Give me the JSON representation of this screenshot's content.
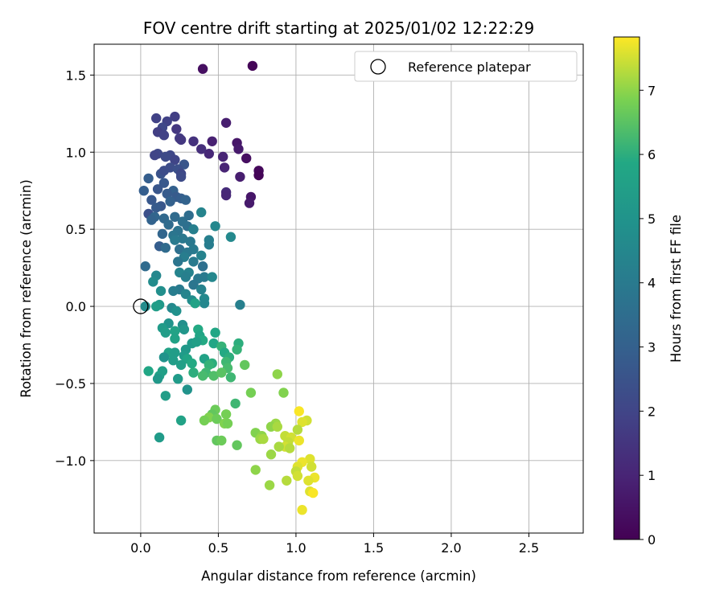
{
  "chart_data": {
    "type": "scatter",
    "title": "FOV centre drift starting at 2025/01/02 12:22:29",
    "xlabel": "Angular distance from reference (arcmin)",
    "ylabel": "Rotation from reference (arcmin)",
    "xlim": [
      -0.3,
      2.85
    ],
    "ylim": [
      -1.47,
      1.7
    ],
    "xticks": [
      {
        "value": 0.0,
        "label": "0.0"
      },
      {
        "value": 0.5,
        "label": "0.5"
      },
      {
        "value": 1.0,
        "label": "1.0"
      },
      {
        "value": 1.5,
        "label": "1.5"
      },
      {
        "value": 2.0,
        "label": "2.0"
      },
      {
        "value": 2.5,
        "label": "2.5"
      }
    ],
    "yticks": [
      {
        "value": -1.0,
        "label": "−1.0"
      },
      {
        "value": -0.5,
        "label": "−0.5"
      },
      {
        "value": 0.0,
        "label": "0.0"
      },
      {
        "value": 0.5,
        "label": "0.5"
      },
      {
        "value": 1.0,
        "label": "1.0"
      },
      {
        "value": 1.5,
        "label": "1.5"
      }
    ],
    "grid": true,
    "legend": {
      "position": "top-right",
      "entries": [
        {
          "label": "Reference platepar",
          "marker": "open-circle",
          "x": 0.0,
          "y": 0.0
        }
      ]
    },
    "colorbar": {
      "label": "Hours from first FF file",
      "colormap": "viridis",
      "range": [
        0,
        7.83
      ],
      "ticks": [
        {
          "value": 0,
          "label": "0"
        },
        {
          "value": 1,
          "label": "1"
        },
        {
          "value": 2,
          "label": "2"
        },
        {
          "value": 3,
          "label": "3"
        },
        {
          "value": 4,
          "label": "4"
        },
        {
          "value": 5,
          "label": "5"
        },
        {
          "value": 6,
          "label": "6"
        },
        {
          "value": 7,
          "label": "7"
        }
      ]
    },
    "points": [
      {
        "x": 0.4,
        "y": 1.54,
        "h": 0.4
      },
      {
        "x": 0.72,
        "y": 1.56,
        "h": 0.1
      },
      {
        "x": 0.55,
        "y": 1.19,
        "h": 0.8
      },
      {
        "x": 0.46,
        "y": 1.07,
        "h": 0.9
      },
      {
        "x": 0.62,
        "y": 1.06,
        "h": 0.6
      },
      {
        "x": 0.63,
        "y": 1.02,
        "h": 0.7
      },
      {
        "x": 0.68,
        "y": 0.96,
        "h": 0.4
      },
      {
        "x": 0.53,
        "y": 0.97,
        "h": 1.0
      },
      {
        "x": 0.44,
        "y": 0.99,
        "h": 1.1
      },
      {
        "x": 0.39,
        "y": 1.02,
        "h": 1.3
      },
      {
        "x": 0.34,
        "y": 1.07,
        "h": 1.4
      },
      {
        "x": 0.76,
        "y": 0.88,
        "h": 0.2
      },
      {
        "x": 0.76,
        "y": 0.85,
        "h": 0.1
      },
      {
        "x": 0.54,
        "y": 0.9,
        "h": 1.0
      },
      {
        "x": 0.64,
        "y": 0.84,
        "h": 0.8
      },
      {
        "x": 0.55,
        "y": 0.74,
        "h": 1.2
      },
      {
        "x": 0.55,
        "y": 0.72,
        "h": 1.1
      },
      {
        "x": 0.71,
        "y": 0.71,
        "h": 0.6
      },
      {
        "x": 0.7,
        "y": 0.67,
        "h": 0.7
      },
      {
        "x": 0.22,
        "y": 1.23,
        "h": 1.8
      },
      {
        "x": 0.1,
        "y": 1.22,
        "h": 1.9
      },
      {
        "x": 0.17,
        "y": 1.2,
        "h": 1.9
      },
      {
        "x": 0.14,
        "y": 1.16,
        "h": 2.1
      },
      {
        "x": 0.23,
        "y": 1.15,
        "h": 1.6
      },
      {
        "x": 0.11,
        "y": 1.13,
        "h": 1.8
      },
      {
        "x": 0.15,
        "y": 1.11,
        "h": 1.9
      },
      {
        "x": 0.25,
        "y": 1.09,
        "h": 1.7
      },
      {
        "x": 0.26,
        "y": 1.08,
        "h": 1.6
      },
      {
        "x": 0.11,
        "y": 0.99,
        "h": 2.1
      },
      {
        "x": 0.09,
        "y": 0.98,
        "h": 2.0
      },
      {
        "x": 0.19,
        "y": 0.98,
        "h": 2.1
      },
      {
        "x": 0.16,
        "y": 0.97,
        "h": 2.2
      },
      {
        "x": 0.22,
        "y": 0.95,
        "h": 2.0
      },
      {
        "x": 0.28,
        "y": 0.92,
        "h": 2.6
      },
      {
        "x": 0.19,
        "y": 0.9,
        "h": 2.3
      },
      {
        "x": 0.24,
        "y": 0.89,
        "h": 2.4
      },
      {
        "x": 0.13,
        "y": 0.86,
        "h": 2.5
      },
      {
        "x": 0.15,
        "y": 0.88,
        "h": 2.3
      },
      {
        "x": 0.26,
        "y": 0.86,
        "h": 2.1
      },
      {
        "x": 0.26,
        "y": 0.84,
        "h": 2.2
      },
      {
        "x": 0.05,
        "y": 0.83,
        "h": 2.9
      },
      {
        "x": 0.15,
        "y": 0.8,
        "h": 2.7
      },
      {
        "x": 0.11,
        "y": 0.76,
        "h": 2.6
      },
      {
        "x": 0.02,
        "y": 0.75,
        "h": 2.9
      },
      {
        "x": 0.21,
        "y": 0.75,
        "h": 3.0
      },
      {
        "x": 0.17,
        "y": 0.73,
        "h": 2.8
      },
      {
        "x": 0.23,
        "y": 0.71,
        "h": 2.8
      },
      {
        "x": 0.26,
        "y": 0.7,
        "h": 2.9
      },
      {
        "x": 0.29,
        "y": 0.69,
        "h": 3.1
      },
      {
        "x": 0.19,
        "y": 0.68,
        "h": 3.0
      },
      {
        "x": 0.07,
        "y": 0.69,
        "h": 2.7
      },
      {
        "x": 0.13,
        "y": 0.65,
        "h": 2.6
      },
      {
        "x": 0.1,
        "y": 0.64,
        "h": 2.8
      },
      {
        "x": 0.05,
        "y": 0.6,
        "h": 2.4
      },
      {
        "x": 0.09,
        "y": 0.58,
        "h": 3.2
      },
      {
        "x": 0.15,
        "y": 0.57,
        "h": 3.3
      },
      {
        "x": 0.07,
        "y": 0.56,
        "h": 3.1
      },
      {
        "x": 0.22,
        "y": 0.58,
        "h": 3.4
      },
      {
        "x": 0.27,
        "y": 0.55,
        "h": 3.6
      },
      {
        "x": 0.31,
        "y": 0.59,
        "h": 3.5
      },
      {
        "x": 0.39,
        "y": 0.61,
        "h": 4.4
      },
      {
        "x": 0.18,
        "y": 0.53,
        "h": 3.4
      },
      {
        "x": 0.3,
        "y": 0.52,
        "h": 3.6
      },
      {
        "x": 0.34,
        "y": 0.5,
        "h": 4.2
      },
      {
        "x": 0.48,
        "y": 0.52,
        "h": 4.5
      },
      {
        "x": 0.24,
        "y": 0.49,
        "h": 3.7
      },
      {
        "x": 0.14,
        "y": 0.47,
        "h": 3.2
      },
      {
        "x": 0.21,
        "y": 0.46,
        "h": 3.8
      },
      {
        "x": 0.27,
        "y": 0.44,
        "h": 3.9
      },
      {
        "x": 0.22,
        "y": 0.43,
        "h": 4.0
      },
      {
        "x": 0.58,
        "y": 0.45,
        "h": 4.6
      },
      {
        "x": 0.44,
        "y": 0.43,
        "h": 4.2
      },
      {
        "x": 0.44,
        "y": 0.4,
        "h": 4.1
      },
      {
        "x": 0.32,
        "y": 0.42,
        "h": 3.9
      },
      {
        "x": 0.34,
        "y": 0.37,
        "h": 4.0
      },
      {
        "x": 0.12,
        "y": 0.39,
        "h": 2.9
      },
      {
        "x": 0.16,
        "y": 0.38,
        "h": 3.4
      },
      {
        "x": 0.25,
        "y": 0.37,
        "h": 3.6
      },
      {
        "x": 0.3,
        "y": 0.35,
        "h": 3.9
      },
      {
        "x": 0.28,
        "y": 0.32,
        "h": 4.1
      },
      {
        "x": 0.39,
        "y": 0.33,
        "h": 4.3
      },
      {
        "x": 0.24,
        "y": 0.29,
        "h": 3.8
      },
      {
        "x": 0.34,
        "y": 0.29,
        "h": 4.0
      },
      {
        "x": 0.4,
        "y": 0.26,
        "h": 3.6
      },
      {
        "x": 0.03,
        "y": 0.26,
        "h": 3.4
      },
      {
        "x": 0.25,
        "y": 0.22,
        "h": 4.4
      },
      {
        "x": 0.31,
        "y": 0.22,
        "h": 4.3
      },
      {
        "x": 0.1,
        "y": 0.2,
        "h": 4.5
      },
      {
        "x": 0.29,
        "y": 0.19,
        "h": 4.2
      },
      {
        "x": 0.37,
        "y": 0.18,
        "h": 3.9
      },
      {
        "x": 0.41,
        "y": 0.19,
        "h": 4.0
      },
      {
        "x": 0.46,
        "y": 0.19,
        "h": 4.5
      },
      {
        "x": 0.08,
        "y": 0.16,
        "h": 4.7
      },
      {
        "x": 0.34,
        "y": 0.14,
        "h": 3.8
      },
      {
        "x": 0.25,
        "y": 0.11,
        "h": 4.0
      },
      {
        "x": 0.21,
        "y": 0.1,
        "h": 4.1
      },
      {
        "x": 0.13,
        "y": 0.1,
        "h": 4.8
      },
      {
        "x": 0.39,
        "y": 0.11,
        "h": 4.3
      },
      {
        "x": 0.29,
        "y": 0.08,
        "h": 4.4
      },
      {
        "x": 0.41,
        "y": 0.05,
        "h": 4.6
      },
      {
        "x": 0.33,
        "y": 0.04,
        "h": 4.7
      },
      {
        "x": 0.41,
        "y": 0.02,
        "h": 4.5
      },
      {
        "x": 0.64,
        "y": 0.01,
        "h": 4.2
      },
      {
        "x": 0.12,
        "y": 0.01,
        "h": 5.2
      },
      {
        "x": 0.1,
        "y": 0.0,
        "h": 5.4
      },
      {
        "x": 0.03,
        "y": 0.0,
        "h": 4.7
      },
      {
        "x": 0.2,
        "y": -0.01,
        "h": 4.6
      },
      {
        "x": 0.35,
        "y": 0.02,
        "h": 5.6
      },
      {
        "x": 0.23,
        "y": -0.03,
        "h": 4.9
      },
      {
        "x": 0.18,
        "y": -0.11,
        "h": 5.0
      },
      {
        "x": 0.27,
        "y": -0.12,
        "h": 4.8
      },
      {
        "x": 0.14,
        "y": -0.14,
        "h": 5.3
      },
      {
        "x": 0.28,
        "y": -0.15,
        "h": 5.1
      },
      {
        "x": 0.16,
        "y": -0.17,
        "h": 5.4
      },
      {
        "x": 0.22,
        "y": -0.16,
        "h": 5.6
      },
      {
        "x": 0.37,
        "y": -0.15,
        "h": 5.9
      },
      {
        "x": 0.48,
        "y": -0.17,
        "h": 5.8
      },
      {
        "x": 0.38,
        "y": -0.19,
        "h": 5.7
      },
      {
        "x": 0.22,
        "y": -0.21,
        "h": 5.6
      },
      {
        "x": 0.4,
        "y": -0.22,
        "h": 5.9
      },
      {
        "x": 0.33,
        "y": -0.24,
        "h": 5.3
      },
      {
        "x": 0.36,
        "y": -0.23,
        "h": 5.5
      },
      {
        "x": 0.47,
        "y": -0.24,
        "h": 5.8
      },
      {
        "x": 0.63,
        "y": -0.24,
        "h": 6.0
      },
      {
        "x": 0.52,
        "y": -0.26,
        "h": 6.1
      },
      {
        "x": 0.29,
        "y": -0.28,
        "h": 5.2
      },
      {
        "x": 0.54,
        "y": -0.3,
        "h": 5.9
      },
      {
        "x": 0.62,
        "y": -0.28,
        "h": 6.1
      },
      {
        "x": 0.18,
        "y": -0.3,
        "h": 5.6
      },
      {
        "x": 0.22,
        "y": -0.3,
        "h": 5.4
      },
      {
        "x": 0.28,
        "y": -0.32,
        "h": 5.3
      },
      {
        "x": 0.15,
        "y": -0.33,
        "h": 5.0
      },
      {
        "x": 0.57,
        "y": -0.33,
        "h": 6.0
      },
      {
        "x": 0.3,
        "y": -0.34,
        "h": 5.7
      },
      {
        "x": 0.41,
        "y": -0.34,
        "h": 5.6
      },
      {
        "x": 0.21,
        "y": -0.35,
        "h": 5.4
      },
      {
        "x": 0.33,
        "y": -0.37,
        "h": 5.9
      },
      {
        "x": 0.46,
        "y": -0.37,
        "h": 6.0
      },
      {
        "x": 0.55,
        "y": -0.36,
        "h": 6.2
      },
      {
        "x": 0.44,
        "y": -0.38,
        "h": 6.1
      },
      {
        "x": 0.26,
        "y": -0.38,
        "h": 5.5
      },
      {
        "x": 0.56,
        "y": -0.4,
        "h": 6.3
      },
      {
        "x": 0.67,
        "y": -0.38,
        "h": 6.6
      },
      {
        "x": 0.42,
        "y": -0.43,
        "h": 6.2
      },
      {
        "x": 0.34,
        "y": -0.43,
        "h": 6.0
      },
      {
        "x": 0.05,
        "y": -0.42,
        "h": 5.8
      },
      {
        "x": 0.12,
        "y": -0.45,
        "h": 5.6
      },
      {
        "x": 0.14,
        "y": -0.42,
        "h": 5.5
      },
      {
        "x": 0.47,
        "y": -0.45,
        "h": 6.4
      },
      {
        "x": 0.52,
        "y": -0.43,
        "h": 6.5
      },
      {
        "x": 0.4,
        "y": -0.45,
        "h": 6.3
      },
      {
        "x": 0.11,
        "y": -0.47,
        "h": 5.2
      },
      {
        "x": 0.24,
        "y": -0.47,
        "h": 5.3
      },
      {
        "x": 0.58,
        "y": -0.46,
        "h": 6.2
      },
      {
        "x": 0.88,
        "y": -0.44,
        "h": 7.0
      },
      {
        "x": 0.3,
        "y": -0.54,
        "h": 5.0
      },
      {
        "x": 0.71,
        "y": -0.56,
        "h": 6.8
      },
      {
        "x": 0.92,
        "y": -0.56,
        "h": 6.9
      },
      {
        "x": 0.16,
        "y": -0.58,
        "h": 5.4
      },
      {
        "x": 0.61,
        "y": -0.63,
        "h": 6.2
      },
      {
        "x": 0.48,
        "y": -0.67,
        "h": 6.7
      },
      {
        "x": 0.46,
        "y": -0.7,
        "h": 6.6
      },
      {
        "x": 0.55,
        "y": -0.7,
        "h": 6.8
      },
      {
        "x": 0.44,
        "y": -0.72,
        "h": 6.9
      },
      {
        "x": 0.49,
        "y": -0.73,
        "h": 6.7
      },
      {
        "x": 0.41,
        "y": -0.74,
        "h": 6.8
      },
      {
        "x": 0.26,
        "y": -0.74,
        "h": 5.6
      },
      {
        "x": 0.54,
        "y": -0.76,
        "h": 6.9
      },
      {
        "x": 0.56,
        "y": -0.76,
        "h": 6.8
      },
      {
        "x": 1.02,
        "y": -0.68,
        "h": 7.8
      },
      {
        "x": 1.07,
        "y": -0.74,
        "h": 7.5
      },
      {
        "x": 1.04,
        "y": -0.75,
        "h": 7.6
      },
      {
        "x": 0.87,
        "y": -0.76,
        "h": 7.1
      },
      {
        "x": 0.84,
        "y": -0.78,
        "h": 7.0
      },
      {
        "x": 0.88,
        "y": -0.78,
        "h": 7.2
      },
      {
        "x": 1.01,
        "y": -0.8,
        "h": 7.3
      },
      {
        "x": 0.74,
        "y": -0.82,
        "h": 6.9
      },
      {
        "x": 0.78,
        "y": -0.84,
        "h": 7.0
      },
      {
        "x": 0.93,
        "y": -0.84,
        "h": 7.4
      },
      {
        "x": 0.97,
        "y": -0.85,
        "h": 7.5
      },
      {
        "x": 0.77,
        "y": -0.86,
        "h": 7.1
      },
      {
        "x": 0.79,
        "y": -0.86,
        "h": 7.2
      },
      {
        "x": 0.49,
        "y": -0.87,
        "h": 6.6
      },
      {
        "x": 0.52,
        "y": -0.87,
        "h": 6.7
      },
      {
        "x": 1.02,
        "y": -0.87,
        "h": 7.7
      },
      {
        "x": 0.12,
        "y": -0.85,
        "h": 5.3
      },
      {
        "x": 0.95,
        "y": -0.88,
        "h": 7.4
      },
      {
        "x": 0.62,
        "y": -0.9,
        "h": 6.6
      },
      {
        "x": 0.93,
        "y": -0.91,
        "h": 7.5
      },
      {
        "x": 0.89,
        "y": -0.91,
        "h": 7.2
      },
      {
        "x": 0.96,
        "y": -0.92,
        "h": 7.3
      },
      {
        "x": 0.84,
        "y": -0.96,
        "h": 7.1
      },
      {
        "x": 1.09,
        "y": -0.99,
        "h": 7.6
      },
      {
        "x": 1.04,
        "y": -1.01,
        "h": 7.7
      },
      {
        "x": 1.01,
        "y": -1.04,
        "h": 7.6
      },
      {
        "x": 1.1,
        "y": -1.04,
        "h": 7.5
      },
      {
        "x": 0.74,
        "y": -1.06,
        "h": 7.0
      },
      {
        "x": 1.0,
        "y": -1.07,
        "h": 7.4
      },
      {
        "x": 1.01,
        "y": -1.1,
        "h": 7.5
      },
      {
        "x": 1.12,
        "y": -1.11,
        "h": 7.7
      },
      {
        "x": 1.08,
        "y": -1.13,
        "h": 7.6
      },
      {
        "x": 0.94,
        "y": -1.13,
        "h": 7.3
      },
      {
        "x": 0.83,
        "y": -1.16,
        "h": 7.1
      },
      {
        "x": 1.09,
        "y": -1.2,
        "h": 7.6
      },
      {
        "x": 1.11,
        "y": -1.21,
        "h": 7.8
      },
      {
        "x": 1.04,
        "y": -1.32,
        "h": 7.7
      }
    ]
  }
}
